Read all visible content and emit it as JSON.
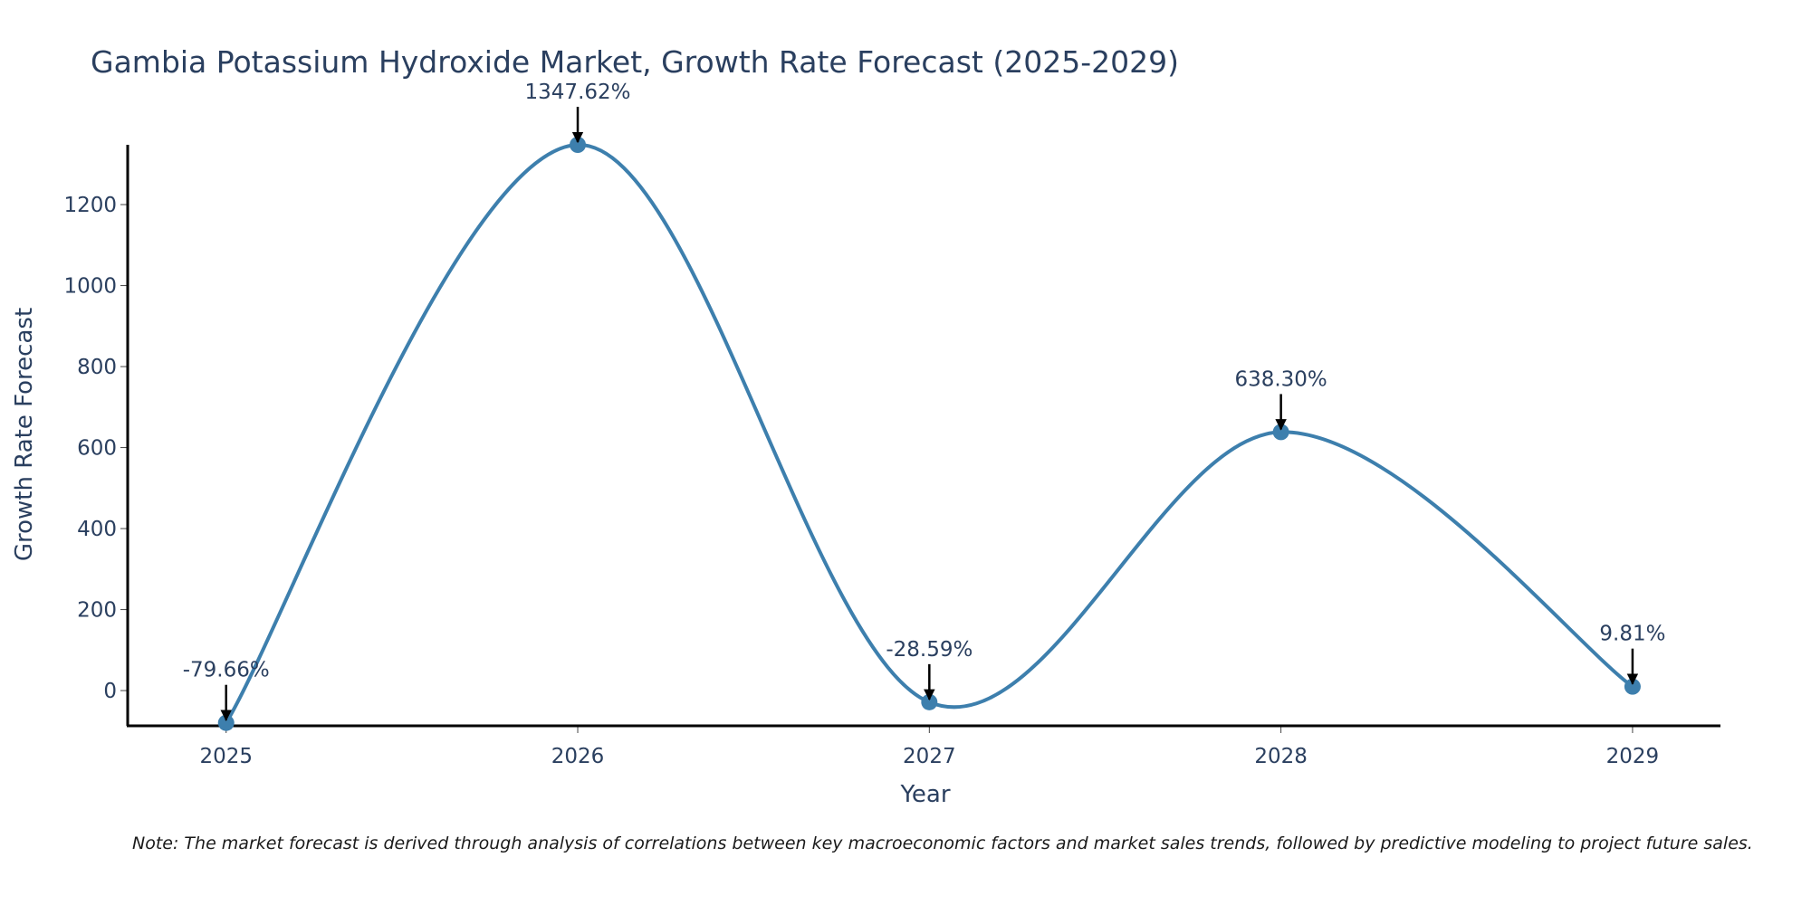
{
  "chart_data": {
    "type": "line",
    "title": "Gambia Potassium Hydroxide Market, Growth Rate Forecast (2025-2029)",
    "xlabel": "Year",
    "ylabel": "Growth Rate Forecast",
    "categories": [
      "2025",
      "2026",
      "2027",
      "2028",
      "2029"
    ],
    "values": [
      -79.66,
      1347.62,
      -28.59,
      638.3,
      9.81
    ],
    "labels": [
      "-79.66%",
      "1347.62%",
      "-28.59%",
      "638.30%",
      "9.81%"
    ],
    "y_ticks": [
      0,
      200,
      400,
      600,
      800,
      1000,
      1200
    ],
    "ylim": [
      -87,
      1347.62
    ],
    "xlim": [
      2024.72,
      2029.25
    ],
    "grid": false,
    "line_color": "#3d7fad",
    "marker_color": "#3d7fad",
    "annotation_arrow_color": "#000000"
  },
  "note": "Note: The market forecast is derived through analysis of correlations between key macroeconomic factors and market sales trends, followed by predictive modeling to project future sales."
}
